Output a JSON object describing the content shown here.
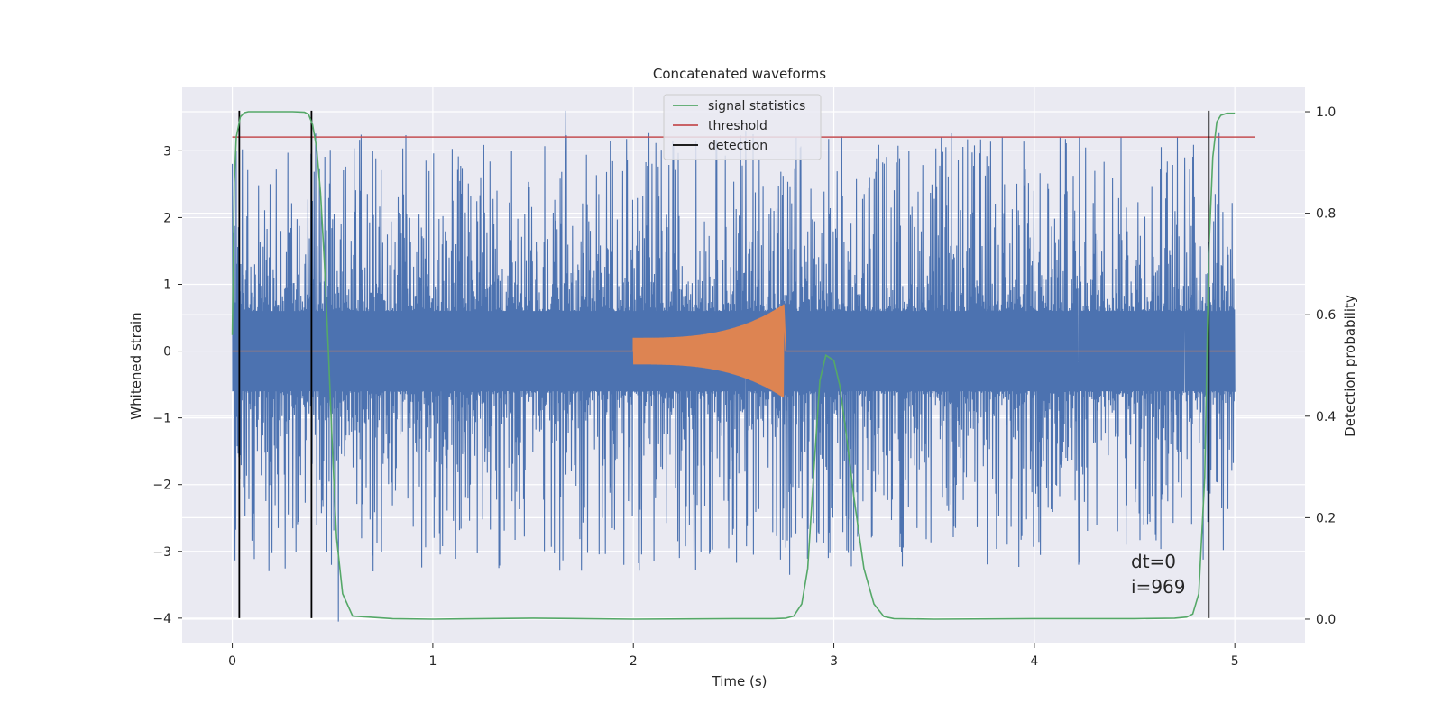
{
  "chart_data": {
    "type": "line",
    "title": "Concatenated waveforms",
    "xlabel": "Time (s)",
    "ylabel": "Whitened strain",
    "y2label": "Detection probability",
    "xlim": [
      -0.25,
      5.35
    ],
    "ylim": [
      -4.38,
      3.95
    ],
    "y2lim": [
      -0.048,
      1.048
    ],
    "x_ticks": [
      0,
      1,
      2,
      3,
      4,
      5
    ],
    "y_ticks": [
      -4,
      -3,
      -2,
      -1,
      0,
      1,
      2,
      3
    ],
    "y2_ticks": [
      0.0,
      0.2,
      0.4,
      0.6,
      0.8,
      1.0
    ],
    "grid": true,
    "legend_position": "top-center",
    "legend": [
      {
        "name": "signal statistics",
        "color": "#55a868"
      },
      {
        "name": "threshold",
        "color": "#c44e52"
      },
      {
        "name": "detection",
        "color": "#000000"
      }
    ],
    "colors": {
      "strain": "#4c72b0",
      "injection": "#dd8452",
      "background": "#eaeaf2",
      "grid": "#ffffff"
    },
    "series": [
      {
        "name": "signal statistics",
        "axis": "right",
        "x": [
          0,
          0.01,
          0.02,
          0.04,
          0.06,
          0.08,
          0.1,
          0.15,
          0.2,
          0.3,
          0.36,
          0.38,
          0.4,
          0.42,
          0.44,
          0.46,
          0.48,
          0.5,
          0.52,
          0.55,
          0.6,
          0.8,
          1.0,
          1.5,
          2.0,
          2.5,
          2.7,
          2.76,
          2.8,
          2.84,
          2.87,
          2.9,
          2.93,
          2.96,
          3.0,
          3.03,
          3.06,
          3.1,
          3.15,
          3.2,
          3.25,
          3.3,
          3.5,
          4.0,
          4.5,
          4.7,
          4.76,
          4.79,
          4.82,
          4.85,
          4.87,
          4.89,
          4.91,
          4.93,
          4.96,
          5.0
        ],
        "y": [
          0.56,
          0.86,
          0.95,
          0.99,
          0.998,
          1.0,
          1.0,
          1.0,
          1.0,
          1.0,
          0.999,
          0.995,
          0.975,
          0.93,
          0.84,
          0.7,
          0.52,
          0.33,
          0.16,
          0.05,
          0.006,
          0.001,
          0.0,
          0.002,
          0.0,
          0.001,
          0.001,
          0.002,
          0.006,
          0.03,
          0.1,
          0.29,
          0.47,
          0.52,
          0.51,
          0.46,
          0.37,
          0.24,
          0.1,
          0.03,
          0.005,
          0.001,
          0.0,
          0.001,
          0.001,
          0.002,
          0.004,
          0.01,
          0.05,
          0.28,
          0.72,
          0.91,
          0.98,
          0.993,
          0.997,
          0.997
        ]
      },
      {
        "name": "threshold",
        "axis": "right",
        "x": [
          0,
          5.1
        ],
        "y": [
          0.95,
          0.95
        ]
      },
      {
        "name": "detection",
        "axis": "left",
        "type": "vlines",
        "x": [
          0.035,
          0.395,
          4.87
        ],
        "y_range": [
          -4,
          3.6
        ]
      },
      {
        "name": "whitened strain noise",
        "axis": "left",
        "x_range": [
          0,
          5
        ],
        "envelope": [
          0.6,
          3.3
        ],
        "peaks": [
          {
            "x": 0.02,
            "y": 3.0
          },
          {
            "x": 1.66,
            "y": 3.6
          },
          {
            "x": 2.56,
            "y": 3.3
          },
          {
            "x": 3.84,
            "y": 3.2
          },
          {
            "x": 4.75,
            "y": 2.9
          },
          {
            "x": 0.53,
            "y": -4.05
          },
          {
            "x": 1.33,
            "y": -3.25
          },
          {
            "x": 2.6,
            "y": -3.05
          },
          {
            "x": 2.78,
            "y": -3.35
          },
          {
            "x": 4.22,
            "y": -3.2
          }
        ]
      },
      {
        "name": "injected waveform",
        "axis": "left",
        "x_range": [
          2.0,
          2.75
        ],
        "amplitude_start": 0.2,
        "amplitude_end": 0.7
      }
    ],
    "annotations": [
      "dt=0",
      "i=969"
    ]
  }
}
